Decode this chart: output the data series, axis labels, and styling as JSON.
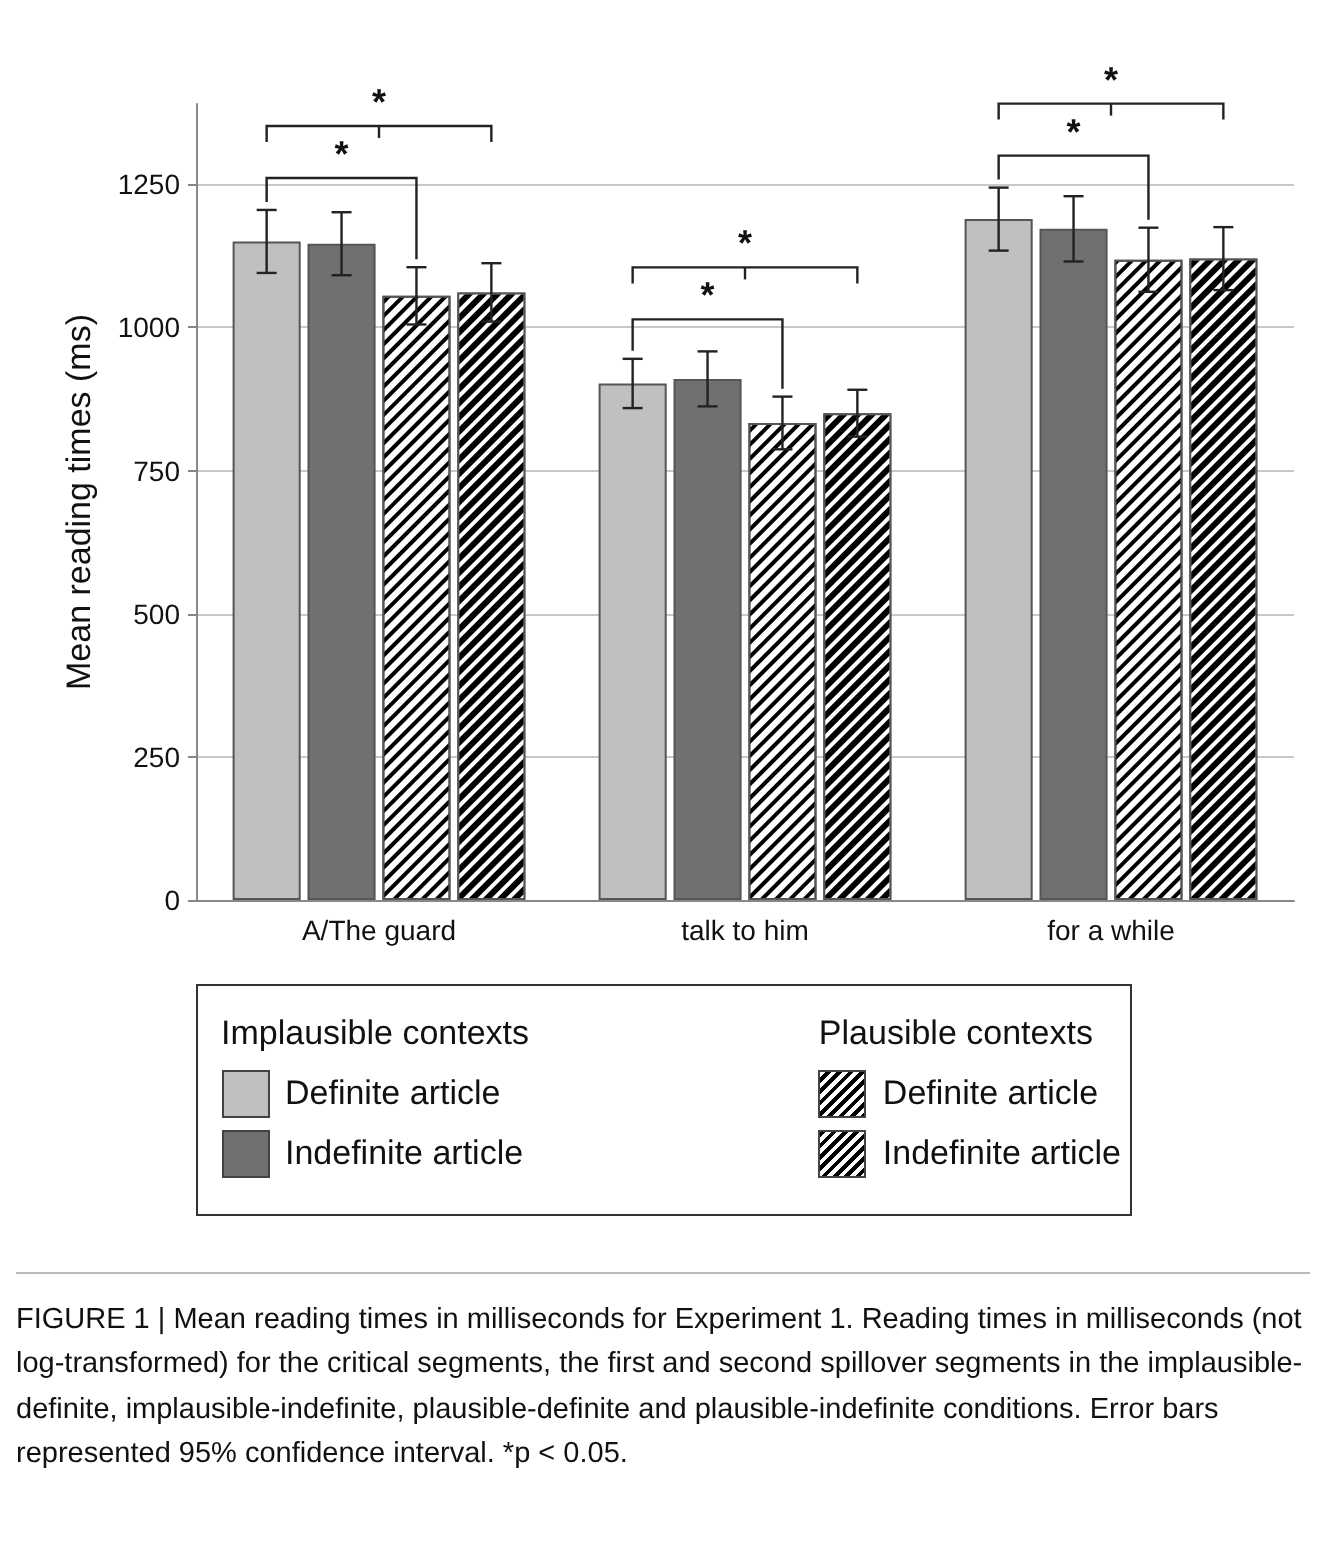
{
  "chart_data": {
    "type": "bar",
    "ylabel": "Mean reading times (ms)",
    "categories": [
      "A/The guard",
      "talk to him",
      "for a while"
    ],
    "series": [
      {
        "name": "Definite article",
        "color": "#c0c0c0",
        "values": [
          1150,
          902,
          1189
        ],
        "errors": [
          55,
          43,
          55
        ]
      },
      {
        "name": "Indefinite article",
        "color": "#707070",
        "values": [
          1146,
          910,
          1172
        ],
        "errors": [
          55,
          48,
          57
        ]
      },
      {
        "name": "Definite article",
        "color": "#ffffff",
        "values": [
          1055,
          833,
          1118
        ],
        "errors": [
          50,
          46,
          56
        ]
      },
      {
        "name": "Indefinite article",
        "color": "#000000",
        "values": [
          1061,
          850,
          1120
        ],
        "errors": [
          51,
          41,
          55
        ]
      }
    ],
    "ylim": [
      0,
      1390
    ],
    "yticks": [
      0,
      250,
      500,
      750,
      1000,
      1250
    ],
    "grid": "y",
    "legend": "bottom",
    "annotations": [
      "Implausible contexts",
      "Plausible contexts",
      "*",
      "*",
      "*",
      "*",
      "*",
      "*",
      "FIGURE 1 | Mean reading times in milliseconds for Experiment 1. Reading times in milliseconds (not log-transformed) for the critical segments, the first and second spillover segments in the implausible-definite, implausible-indefinite, plausible-definite and plausible-indefinite conditions. Error bars represented 95% confidence interval. *p < 0.05."
    ]
  }
}
